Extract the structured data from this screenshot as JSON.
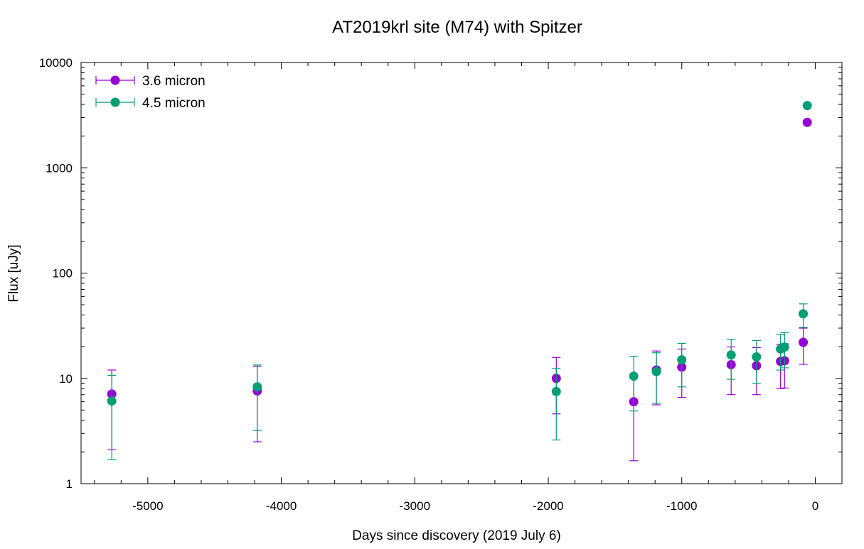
{
  "chart_data": {
    "type": "scatter",
    "title": "AT2019krl site (M74) with Spitzer",
    "xlabel": "Days since discovery (2019 July 6)",
    "ylabel": "Flux [uJy]",
    "xlim": [
      -5500,
      200
    ],
    "ylim": [
      1,
      10000
    ],
    "yscale": "log",
    "grid": false,
    "legend_position": "top-left",
    "x_ticks": [
      -5000,
      -4000,
      -3000,
      -2000,
      -1000,
      0
    ],
    "x_tick_labels": [
      "-5000",
      "-4000",
      "-3000",
      "-2000",
      "-1000",
      "0"
    ],
    "y_ticks": [
      1,
      10,
      100,
      1000,
      10000
    ],
    "y_tick_labels": [
      "1",
      "10",
      "100",
      "1000",
      "10000"
    ],
    "series": [
      {
        "name": "3.6 micron",
        "color": "#9400d3",
        "points": [
          {
            "x": -5270,
            "y": 7.1,
            "lo": 2.1,
            "hi": 12.0
          },
          {
            "x": -4180,
            "y": 7.6,
            "lo": 2.5,
            "hi": 13.0
          },
          {
            "x": -1940,
            "y": 10.0,
            "lo": 4.6,
            "hi": 15.8
          },
          {
            "x": -1360,
            "y": 6.0,
            "lo": 1.65,
            "hi": 10.5
          },
          {
            "x": -1190,
            "y": 12.0,
            "lo": 5.6,
            "hi": 18.2
          },
          {
            "x": -1000,
            "y": 12.8,
            "lo": 6.6,
            "hi": 19.0
          },
          {
            "x": -630,
            "y": 13.5,
            "lo": 7.0,
            "hi": 19.9
          },
          {
            "x": -440,
            "y": 13.2,
            "lo": 7.0,
            "hi": 19.6
          },
          {
            "x": -260,
            "y": 14.5,
            "lo": 8.0,
            "hi": 21.0
          },
          {
            "x": -230,
            "y": 14.7,
            "lo": 8.1,
            "hi": 21.3
          },
          {
            "x": -90,
            "y": 22.0,
            "lo": 13.6,
            "hi": 30.0
          },
          {
            "x": -60,
            "y": 2700,
            "lo": null,
            "hi": null
          }
        ]
      },
      {
        "name": "4.5 micron",
        "color": "#009e73",
        "points": [
          {
            "x": -5270,
            "y": 6.1,
            "lo": 1.7,
            "hi": 10.7
          },
          {
            "x": -4180,
            "y": 8.3,
            "lo": 3.2,
            "hi": 13.4
          },
          {
            "x": -1940,
            "y": 7.5,
            "lo": 2.6,
            "hi": 12.4
          },
          {
            "x": -1360,
            "y": 10.5,
            "lo": 4.9,
            "hi": 16.2
          },
          {
            "x": -1190,
            "y": 11.6,
            "lo": 5.8,
            "hi": 17.5
          },
          {
            "x": -1000,
            "y": 15.0,
            "lo": 8.3,
            "hi": 21.5
          },
          {
            "x": -630,
            "y": 16.7,
            "lo": 9.8,
            "hi": 23.5
          },
          {
            "x": -440,
            "y": 16.0,
            "lo": 9.0,
            "hi": 22.9
          },
          {
            "x": -260,
            "y": 19.0,
            "lo": 12.0,
            "hi": 26.1
          },
          {
            "x": -230,
            "y": 19.8,
            "lo": 12.6,
            "hi": 27.2
          },
          {
            "x": -90,
            "y": 41.0,
            "lo": 30.5,
            "hi": 51.0
          },
          {
            "x": -60,
            "y": 3900,
            "lo": null,
            "hi": null
          }
        ]
      }
    ]
  }
}
